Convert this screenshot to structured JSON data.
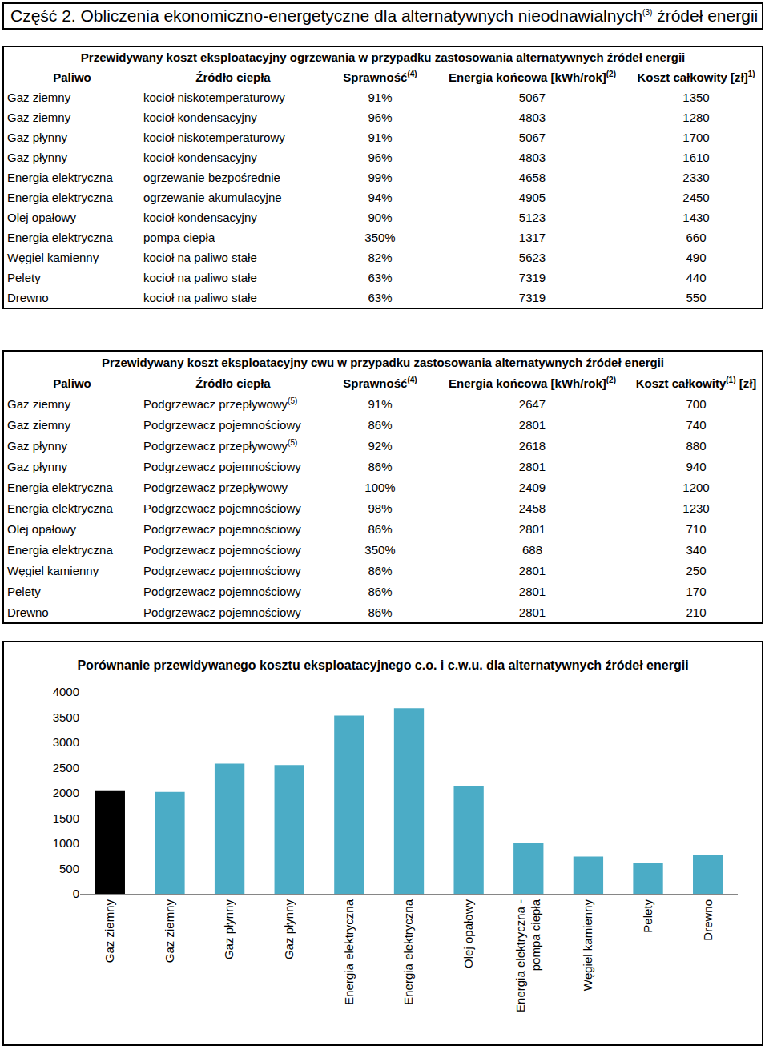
{
  "title": {
    "text": "Część 2. Obliczenia ekonomiczno-energetyczne dla alternatywnych nieodnawialnych",
    "sup": "(3)",
    "after": " źródeł energii"
  },
  "tables": [
    {
      "title": "Przewidywany koszt eksploatacyjny ogrzewania w przypadku zastosowania alternatywnych źródeł energii",
      "header": [
        "Paliwo",
        "Źródło ciepła",
        {
          "text": "Sprawność",
          "sup": "(4)"
        },
        {
          "text": "Energia końcowa [kWh/rok]",
          "sup": "(2)"
        },
        {
          "text": "Koszt całkowity [zł]",
          "sup": "1)"
        }
      ],
      "rows": [
        [
          "Gaz ziemny",
          "kocioł niskotemperaturowy",
          "91%",
          "5067",
          "1350"
        ],
        [
          "Gaz ziemny",
          "kocioł kondensacyjny",
          "96%",
          "4803",
          "1280"
        ],
        [
          "Gaz płynny",
          "kocioł niskotemperaturowy",
          "91%",
          "5067",
          "1700"
        ],
        [
          "Gaz płynny",
          "kocioł kondensacyjny",
          "96%",
          "4803",
          "1610"
        ],
        [
          "Energia elektryczna",
          "ogrzewanie bezpośrednie",
          "99%",
          "4658",
          "2330"
        ],
        [
          "Energia elektryczna",
          "ogrzewanie akumulacyjne",
          "94%",
          "4905",
          "2450"
        ],
        [
          "Olej opałowy",
          "kocioł kondensacyjny",
          "90%",
          "5123",
          "1430"
        ],
        [
          "Energia elektryczna",
          "pompa ciepła",
          "350%",
          "1317",
          "660"
        ],
        [
          "Węgiel kamienny",
          "kocioł na paliwo stałe",
          "82%",
          "5623",
          "490"
        ],
        [
          "Pelety",
          "kocioł na paliwo stałe",
          "63%",
          "7319",
          "440"
        ],
        [
          "Drewno",
          "kocioł na paliwo stałe",
          "63%",
          "7319",
          "550"
        ]
      ]
    },
    {
      "title": "Przewidywany koszt eksploatacyjny cwu w przypadku zastosowania alternatywnych źródeł energii",
      "header": [
        "Paliwo",
        "Źródło ciepła",
        {
          "text": "Sprawność",
          "sup": "(4)"
        },
        {
          "text": "Energia końcowa [kWh/rok]",
          "sup": "(2)"
        },
        {
          "text": "Koszt całkowity",
          "sup": "(1)",
          "after": " [zł]"
        }
      ],
      "rows": [
        [
          "Gaz ziemny",
          {
            "text": "Podgrzewacz przepływowy",
            "sup": "(5)"
          },
          "91%",
          "2647",
          "700"
        ],
        [
          "Gaz ziemny",
          "Podgrzewacz pojemnościowy",
          "86%",
          "2801",
          "740"
        ],
        [
          "Gaz płynny",
          {
            "text": "Podgrzewacz przepływowy",
            "sup": "(5)"
          },
          "92%",
          "2618",
          "880"
        ],
        [
          "Gaz płynny",
          "Podgrzewacz pojemnościowy",
          "86%",
          "2801",
          "940"
        ],
        [
          "Energia elektryczna",
          "Podgrzewacz przepływowy",
          "100%",
          "2409",
          "1200"
        ],
        [
          "Energia elektryczna",
          "Podgrzewacz pojemnościowy",
          "98%",
          "2458",
          "1230"
        ],
        [
          "Olej opałowy",
          "Podgrzewacz pojemnościowy",
          "86%",
          "2801",
          "710"
        ],
        [
          "Energia elektryczna",
          "Podgrzewacz pojemnościowy",
          "350%",
          "688",
          "340"
        ],
        [
          "Węgiel kamienny",
          "Podgrzewacz pojemnościowy",
          "86%",
          "2801",
          "250"
        ],
        [
          "Pelety",
          "Podgrzewacz pojemnościowy",
          "86%",
          "2801",
          "170"
        ],
        [
          "Drewno",
          "Podgrzewacz pojemnościowy",
          "86%",
          "2801",
          "210"
        ]
      ]
    }
  ],
  "chart_data": {
    "type": "bar",
    "title": "Porównanie przewidywanego kosztu eksploatacyjnego c.o. i c.w.u. dla alternatywnych źródeł energii",
    "categories": [
      "Gaz ziemny",
      "Gaz ziemny",
      "Gaz płynny",
      "Gaz płynny",
      "Energia elektryczna",
      "Energia elektryczna",
      "Olej opałowy",
      "Energia elektryczna - pompa ciepła",
      "Węgiel kamienny",
      "Pelety",
      "Drewno"
    ],
    "values": [
      2050,
      2020,
      2580,
      2550,
      3530,
      3680,
      2140,
      1000,
      740,
      610,
      760
    ],
    "colors": [
      "#000000",
      "#4bacc6",
      "#4bacc6",
      "#4bacc6",
      "#4bacc6",
      "#4bacc6",
      "#4bacc6",
      "#4bacc6",
      "#4bacc6",
      "#4bacc6",
      "#4bacc6"
    ],
    "ylim": [
      0,
      4000
    ],
    "yticks": [
      0,
      500,
      1000,
      1500,
      2000,
      2500,
      3000,
      3500,
      4000
    ],
    "grid": false
  }
}
